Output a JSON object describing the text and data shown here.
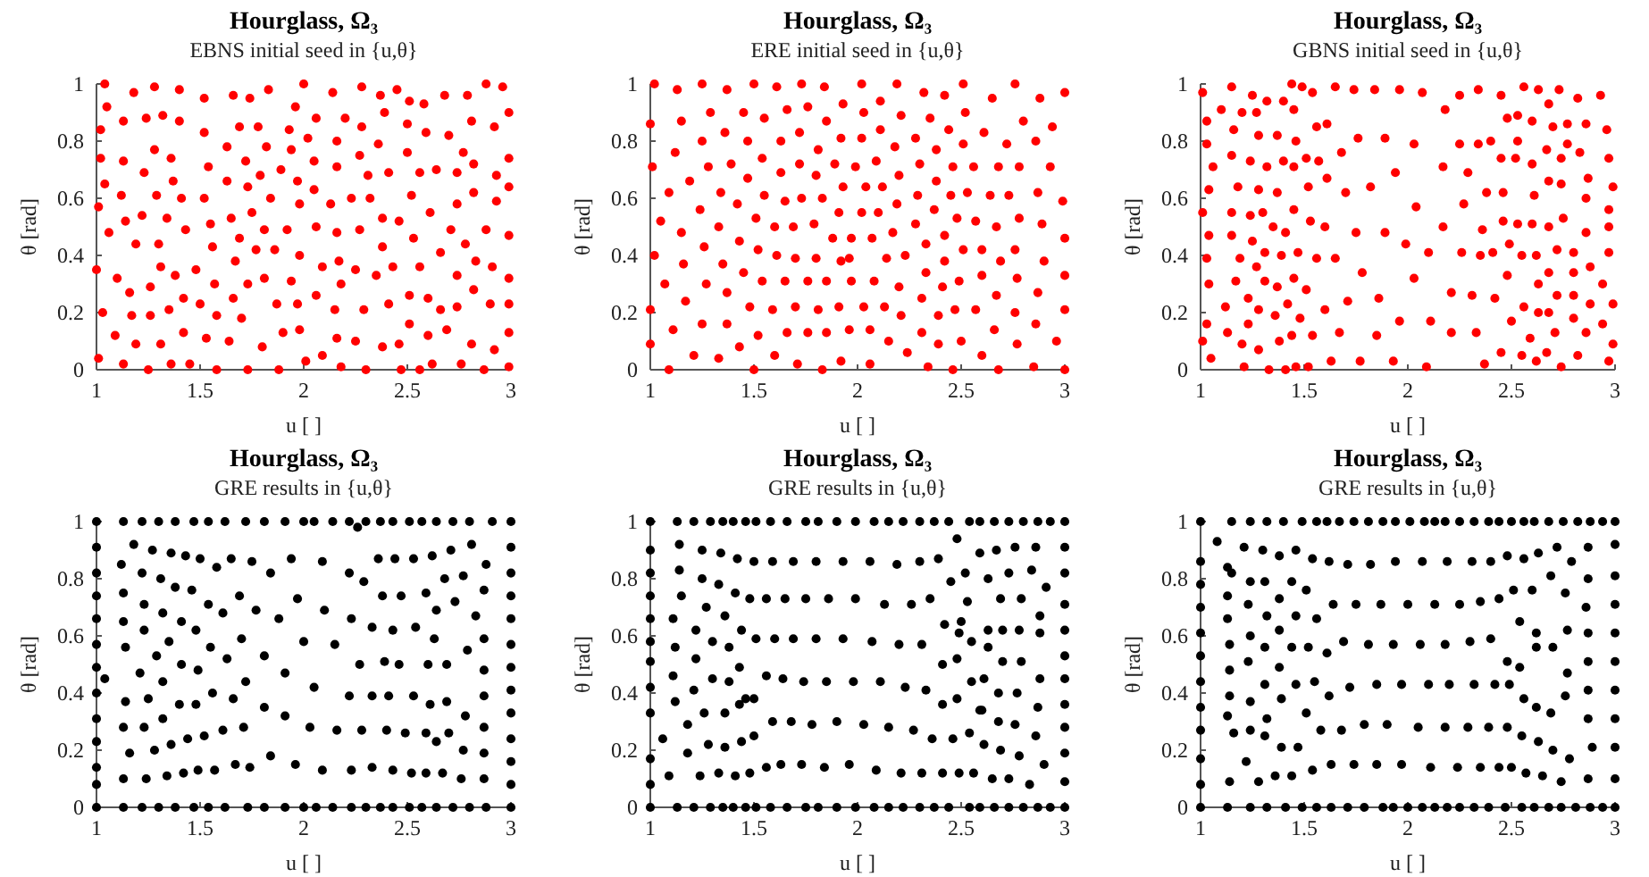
{
  "chart_data": [
    {
      "type": "scatter",
      "title": "Hourglass, Ω₃",
      "subtitle": "EBNS initial seed in {u,θ}",
      "xlabel": "u [ ]",
      "ylabel": "θ [rad]",
      "xlim": [
        1,
        3
      ],
      "ylim": [
        0,
        1
      ],
      "xticks": [
        1,
        1.5,
        2,
        2.5,
        3
      ],
      "yticks": [
        0,
        0.2,
        0.4,
        0.6,
        0.8,
        1
      ],
      "marker": "circle",
      "color": "#ff0000",
      "x": [
        1.04,
        1.05,
        1.02,
        1.02,
        1.04,
        1.01,
        1.06,
        1.0,
        1.03,
        1.01,
        1.18,
        1.13,
        1.13,
        1.12,
        1.14,
        1.1,
        1.16,
        1.17,
        1.09,
        1.13,
        1.28,
        1.24,
        1.32,
        1.28,
        1.23,
        1.22,
        1.19,
        1.3,
        1.29,
        1.34,
        1.26,
        1.26,
        1.31,
        1.19,
        1.31,
        1.25,
        1.4,
        1.4,
        1.36,
        1.37,
        1.41,
        1.43,
        1.38,
        1.35,
        1.42,
        1.42,
        1.36,
        1.45,
        1.52,
        1.52,
        1.54,
        1.52,
        1.56,
        1.55,
        1.48,
        1.5,
        1.57,
        1.53,
        1.58,
        1.58,
        1.66,
        1.63,
        1.63,
        1.65,
        1.67,
        1.66,
        1.64,
        1.69,
        1.69,
        1.7,
        1.72,
        1.73,
        1.75,
        1.74,
        1.73,
        1.73,
        1.78,
        1.79,
        1.77,
        1.81,
        1.8,
        1.81,
        1.83,
        1.82,
        1.84,
        1.86,
        1.87,
        1.88,
        1.9,
        1.89,
        1.96,
        1.93,
        1.94,
        1.92,
        1.94,
        1.98,
        1.97,
        1.98,
        1.97,
        1.98,
        2.0,
        2.02,
        2.01,
        2.05,
        2.05,
        2.06,
        2.06,
        2.06,
        2.09,
        2.09,
        2.14,
        2.13,
        2.16,
        2.16,
        2.16,
        2.17,
        2.15,
        2.16,
        2.18,
        2.18,
        2.2,
        2.23,
        2.25,
        2.25,
        2.27,
        2.27,
        2.28,
        2.28,
        2.29,
        2.31,
        2.3,
        2.32,
        2.35,
        2.37,
        2.36,
        2.38,
        2.38,
        2.38,
        2.39,
        2.41,
        2.41,
        2.43,
        2.45,
        2.46,
        2.46,
        2.47,
        2.5,
        2.5,
        2.51,
        2.51,
        2.51,
        2.52,
        2.53,
        2.56,
        2.56,
        2.56,
        2.58,
        2.59,
        2.6,
        2.6,
        2.61,
        2.62,
        2.64,
        2.66,
        2.66,
        2.68,
        2.7,
        2.69,
        2.71,
        2.74,
        2.74,
        2.74,
        2.74,
        2.76,
        2.77,
        2.78,
        2.79,
        2.81,
        2.82,
        2.82,
        2.83,
        2.82,
        2.81,
        2.88,
        2.88,
        2.87,
        2.91,
        2.92,
        2.93,
        2.93,
        2.9,
        2.92,
        2.96,
        2.99,
        2.99,
        2.99,
        2.99,
        2.99,
        2.99,
        2.99,
        2.99
      ],
      "values": [
        1.0,
        0.92,
        0.84,
        0.74,
        0.65,
        0.57,
        0.48,
        0.35,
        0.2,
        0.04,
        0.97,
        0.87,
        0.73,
        0.61,
        0.52,
        0.32,
        0.27,
        0.19,
        0.12,
        0.02,
        0.99,
        0.88,
        0.89,
        0.77,
        0.69,
        0.54,
        0.44,
        0.44,
        0.61,
        0.53,
        0.29,
        0.19,
        0.36,
        0.09,
        0.09,
        0.0,
        0.98,
        0.87,
        0.74,
        0.66,
        0.6,
        0.49,
        0.33,
        0.21,
        0.25,
        0.13,
        0.02,
        0.02,
        0.95,
        0.83,
        0.71,
        0.6,
        0.43,
        0.51,
        0.35,
        0.23,
        0.3,
        0.11,
        0.0,
        0.19,
        0.96,
        0.78,
        0.66,
        0.53,
        0.38,
        0.25,
        0.1,
        0.85,
        0.46,
        0.18,
        0.73,
        0.64,
        0.55,
        0.95,
        0.3,
        0.0,
        0.85,
        0.68,
        0.42,
        0.32,
        0.08,
        0.49,
        0.98,
        0.78,
        0.6,
        0.42,
        0.23,
        0.0,
        0.13,
        0.7,
        0.92,
        0.84,
        0.77,
        0.49,
        0.31,
        0.58,
        0.66,
        0.4,
        0.23,
        0.14,
        1.0,
        0.81,
        0.03,
        0.73,
        0.63,
        0.5,
        0.26,
        0.88,
        0.36,
        0.05,
        0.97,
        0.58,
        0.8,
        0.71,
        0.48,
        0.38,
        0.21,
        0.11,
        0.3,
        0.01,
        0.88,
        0.6,
        0.35,
        0.1,
        0.49,
        0.75,
        0.99,
        0.85,
        0.21,
        0.68,
        0.0,
        0.6,
        0.33,
        0.96,
        0.79,
        0.53,
        0.43,
        0.08,
        0.9,
        0.69,
        0.23,
        0.36,
        0.98,
        0.52,
        0.09,
        0.0,
        0.76,
        0.86,
        0.94,
        0.26,
        0.16,
        0.61,
        0.46,
        0.69,
        0.0,
        0.36,
        0.93,
        0.83,
        0.25,
        0.12,
        0.55,
        0.02,
        0.7,
        0.41,
        0.21,
        0.96,
        0.82,
        0.14,
        0.49,
        0.69,
        0.58,
        0.33,
        0.22,
        0.02,
        0.76,
        0.44,
        0.96,
        0.87,
        0.62,
        0.72,
        0.38,
        0.28,
        0.09,
        1.0,
        0.49,
        0.0,
        0.36,
        0.85,
        0.68,
        0.59,
        0.23,
        0.07,
        0.99,
        0.9,
        0.74,
        0.64,
        0.47,
        0.32,
        0.23,
        0.13,
        0.01
      ]
    },
    {
      "type": "scatter",
      "title": "Hourglass, Ω₃",
      "subtitle": "ERE initial seed in {u,θ}",
      "xlabel": "u [ ]",
      "ylabel": "θ [rad]",
      "xlim": [
        1,
        3
      ],
      "ylim": [
        0,
        1
      ],
      "xticks": [
        1,
        1.5,
        2,
        2.5,
        3
      ],
      "yticks": [
        0,
        0.2,
        0.4,
        0.6,
        0.8,
        1
      ],
      "marker": "circle",
      "color": "#ff0000",
      "x": [
        1.02,
        1.0,
        1.01,
        1.09,
        1.05,
        1.02,
        1.07,
        1.0,
        1.0,
        1.09,
        1.13,
        1.15,
        1.12,
        1.19,
        1.15,
        1.16,
        1.17,
        1.11,
        1.21,
        1.25,
        1.29,
        1.25,
        1.28,
        1.24,
        1.26,
        1.27,
        1.25,
        1.33,
        1.37,
        1.36,
        1.39,
        1.34,
        1.33,
        1.35,
        1.37,
        1.37,
        1.43,
        1.5,
        1.45,
        1.47,
        1.47,
        1.42,
        1.43,
        1.45,
        1.48,
        1.52,
        1.5,
        1.55,
        1.54,
        1.55,
        1.51,
        1.52,
        1.54,
        1.59,
        1.6,
        1.61,
        1.63,
        1.66,
        1.63,
        1.65,
        1.6,
        1.61,
        1.65,
        1.66,
        1.71,
        1.73,
        1.76,
        1.72,
        1.72,
        1.73,
        1.69,
        1.7,
        1.76,
        1.7,
        1.76,
        1.84,
        1.85,
        1.81,
        1.8,
        1.83,
        1.79,
        1.8,
        1.85,
        1.81,
        1.85,
        1.83,
        1.93,
        1.92,
        1.89,
        1.93,
        1.91,
        1.88,
        1.92,
        1.91,
        1.96,
        1.92,
        2.02,
        2.03,
        2.02,
        1.99,
        2.04,
        2.02,
        1.97,
        1.96,
        1.97,
        2.03,
        2.06,
        2.06,
        2.11,
        2.11,
        2.09,
        2.12,
        2.1,
        2.07,
        2.08,
        2.13,
        2.15,
        2.19,
        2.21,
        2.18,
        2.2,
        2.19,
        2.17,
        2.14,
        2.23,
        2.2,
        2.21,
        2.24,
        2.32,
        2.35,
        2.28,
        2.3,
        2.29,
        2.28,
        2.33,
        2.33,
        2.31,
        2.31,
        2.34,
        2.42,
        2.44,
        2.38,
        2.38,
        2.45,
        2.37,
        2.42,
        2.42,
        2.41,
        2.39,
        2.39,
        2.46,
        2.51,
        2.52,
        2.51,
        2.46,
        2.53,
        2.48,
        2.51,
        2.49,
        2.47,
        2.5,
        2.61,
        2.56,
        2.64,
        2.57,
        2.6,
        2.6,
        2.57,
        2.6,
        2.68,
        2.65,
        2.68,
        2.67,
        2.69,
        2.67,
        2.66,
        2.76,
        2.72,
        2.73,
        2.76,
        2.77,
        2.76,
        2.77,
        2.8,
        2.78,
        2.78,
        2.85,
        2.86,
        2.87,
        2.89,
        2.9,
        2.87,
        2.86,
        2.88,
        2.94,
        2.93,
        2.96,
        3.0,
        2.99,
        3.0,
        3.0,
        3.0,
        3.0
      ],
      "values": [
        1.0,
        0.86,
        0.71,
        0.62,
        0.52,
        0.4,
        0.3,
        0.21,
        0.09,
        0.0,
        0.98,
        0.87,
        0.76,
        0.66,
        0.48,
        0.37,
        0.24,
        0.14,
        0.05,
        1.0,
        0.9,
        0.8,
        0.71,
        0.56,
        0.43,
        0.3,
        0.16,
        0.04,
        0.98,
        0.83,
        0.72,
        0.62,
        0.5,
        0.37,
        0.27,
        0.16,
        0.08,
        1.0,
        0.9,
        0.8,
        0.67,
        0.58,
        0.45,
        0.34,
        0.22,
        0.12,
        0.0,
        0.88,
        0.74,
        0.61,
        0.53,
        0.42,
        0.31,
        0.21,
        0.05,
        0.99,
        0.8,
        0.91,
        0.69,
        0.59,
        0.5,
        0.4,
        0.31,
        0.13,
        0.02,
        1.0,
        0.92,
        0.83,
        0.72,
        0.6,
        0.5,
        0.39,
        0.31,
        0.22,
        0.13,
        0.99,
        0.87,
        0.77,
        0.68,
        0.6,
        0.51,
        0.39,
        0.31,
        0.21,
        0.13,
        0.0,
        0.93,
        0.81,
        0.72,
        0.64,
        0.55,
        0.46,
        0.38,
        0.22,
        0.14,
        0.03,
        1.0,
        0.9,
        0.81,
        0.71,
        0.64,
        0.55,
        0.46,
        0.39,
        0.31,
        0.22,
        0.14,
        0.02,
        0.94,
        0.84,
        0.73,
        0.64,
        0.55,
        0.46,
        0.31,
        0.22,
        0.1,
        1.0,
        0.89,
        0.78,
        0.68,
        0.58,
        0.48,
        0.39,
        0.4,
        0.29,
        0.19,
        0.06,
        0.97,
        0.88,
        0.81,
        0.72,
        0.61,
        0.51,
        0.44,
        0.34,
        0.25,
        0.13,
        0.01,
        0.96,
        0.84,
        0.77,
        0.66,
        0.61,
        0.56,
        0.47,
        0.38,
        0.29,
        0.19,
        0.09,
        0.0,
        1.0,
        0.9,
        0.79,
        0.71,
        0.62,
        0.53,
        0.42,
        0.31,
        0.21,
        0.1,
        0.83,
        0.71,
        0.61,
        0.52,
        0.42,
        0.33,
        0.21,
        0.05,
        0.0,
        0.95,
        0.71,
        0.5,
        0.38,
        0.26,
        0.14,
        1.0,
        0.79,
        0.61,
        0.42,
        0.32,
        0.2,
        0.09,
        0.87,
        0.71,
        0.53,
        0.01,
        0.8,
        0.62,
        0.51,
        0.38,
        0.27,
        0.16,
        0.95,
        0.85,
        0.71,
        0.1,
        0.97,
        0.59,
        0.46,
        0.33,
        0.21,
        0.0
      ]
    },
    {
      "type": "scatter",
      "title": "Hourglass, Ω₃",
      "subtitle": "GBNS initial seed in {u,θ}",
      "xlabel": "u [ ]",
      "ylabel": "θ [rad]",
      "xlim": [
        1,
        3
      ],
      "ylim": [
        0,
        1
      ],
      "xticks": [
        1,
        1.5,
        2,
        2.5,
        3
      ],
      "yticks": [
        0,
        0.2,
        0.4,
        0.6,
        0.8,
        1
      ],
      "marker": "circle",
      "color": "#ff0000",
      "x": [
        1.01,
        1.03,
        1.03,
        1.06,
        1.04,
        1.01,
        1.04,
        1.03,
        1.04,
        1.03,
        1.01,
        1.05,
        1.1,
        1.15,
        1.16,
        1.15,
        1.15,
        1.15,
        1.18,
        1.19,
        1.17,
        1.12,
        1.13,
        1.21,
        1.2,
        1.2,
        1.25,
        1.27,
        1.28,
        1.24,
        1.28,
        1.24,
        1.25,
        1.27,
        1.23,
        1.23,
        1.28,
        1.28,
        1.32,
        1.32,
        1.3,
        1.31,
        1.31,
        1.33,
        1.37,
        1.35,
        1.37,
        1.37,
        1.36,
        1.38,
        1.4,
        1.4,
        1.39,
        1.41,
        1.42,
        1.41,
        1.44,
        1.45,
        1.45,
        1.46,
        1.45,
        1.45,
        1.44,
        1.47,
        1.48,
        1.46,
        1.49,
        1.51,
        1.52,
        1.51,
        1.54,
        1.53,
        1.54,
        1.52,
        1.57,
        1.56,
        1.56,
        1.61,
        1.61,
        1.6,
        1.6,
        1.63,
        1.65,
        1.65,
        1.67,
        1.68,
        1.7,
        1.71,
        1.75,
        1.77,
        1.74,
        1.76,
        1.78,
        1.82,
        1.86,
        1.85,
        1.84,
        1.89,
        1.89,
        1.94,
        1.93,
        1.96,
        1.96,
        1.99,
        2.03,
        2.03,
        2.04,
        2.07,
        2.09,
        2.1,
        2.11,
        2.18,
        2.17,
        2.17,
        2.21,
        2.21,
        2.25,
        2.25,
        2.26,
        2.27,
        2.29,
        2.31,
        2.33,
        2.34,
        2.34,
        2.35,
        2.36,
        2.37,
        2.38,
        2.4,
        2.41,
        2.42,
        2.45,
        2.45,
        2.45,
        2.46,
        2.46,
        2.48,
        2.48,
        2.49,
        2.5,
        2.52,
        2.53,
        2.53,
        2.53,
        2.55,
        2.55,
        2.56,
        2.56,
        2.59,
        2.6,
        2.6,
        2.61,
        2.6,
        2.63,
        2.62,
        2.63,
        2.63,
        2.62,
        2.67,
        2.68,
        2.68,
        2.68,
        2.68,
        2.68,
        2.67,
        2.7,
        2.71,
        2.72,
        2.72,
        2.73,
        2.74,
        2.74,
        2.74,
        2.75,
        2.77,
        2.77,
        2.8,
        2.8,
        2.8,
        2.8,
        2.82,
        2.82,
        2.83,
        2.86,
        2.86,
        2.86,
        2.86,
        2.87,
        2.88,
        2.88,
        2.93,
        2.94,
        2.94,
        2.96,
        2.97,
        2.97,
        2.97,
        2.97,
        2.97,
        2.99,
        2.99,
        2.99
      ],
      "values": [
        0.97,
        0.87,
        0.79,
        0.71,
        0.63,
        0.55,
        0.47,
        0.39,
        0.3,
        0.16,
        0.1,
        0.04,
        0.91,
        0.99,
        0.84,
        0.75,
        0.55,
        0.47,
        0.64,
        0.39,
        0.31,
        0.22,
        0.13,
        0.01,
        0.09,
        0.9,
        0.96,
        0.9,
        0.82,
        0.73,
        0.63,
        0.54,
        0.45,
        0.36,
        0.25,
        0.16,
        0.21,
        0.07,
        0.94,
        0.71,
        0.55,
        0.41,
        0.31,
        0.0,
        0.82,
        0.5,
        0.62,
        0.29,
        0.19,
        0.1,
        0.94,
        0.73,
        0.4,
        0.48,
        0.23,
        0.0,
        1.0,
        0.91,
        0.71,
        0.8,
        0.56,
        0.32,
        0.12,
        0.41,
        0.18,
        0.01,
        0.99,
        0.74,
        0.64,
        0.28,
        0.97,
        0.52,
        0.12,
        0.01,
        0.73,
        0.85,
        0.39,
        0.86,
        0.67,
        0.5,
        0.21,
        0.03,
        0.99,
        0.39,
        0.13,
        0.76,
        0.62,
        0.24,
        0.48,
        0.03,
        0.98,
        0.81,
        0.34,
        0.64,
        0.25,
        0.12,
        0.98,
        0.81,
        0.48,
        0.69,
        0.03,
        0.98,
        0.17,
        0.44,
        0.32,
        0.79,
        0.57,
        0.97,
        0.01,
        0.41,
        0.17,
        0.91,
        0.71,
        0.5,
        0.27,
        0.13,
        0.96,
        0.79,
        0.41,
        0.58,
        0.69,
        0.26,
        0.13,
        0.98,
        0.79,
        0.4,
        0.49,
        0.02,
        0.62,
        0.8,
        0.41,
        0.25,
        0.96,
        0.06,
        0.74,
        0.62,
        0.52,
        0.88,
        0.33,
        0.44,
        0.17,
        0.74,
        0.89,
        0.8,
        0.51,
        0.05,
        0.4,
        0.22,
        0.99,
        0.11,
        0.87,
        0.72,
        0.61,
        0.51,
        0.98,
        0.4,
        0.3,
        0.2,
        0.03,
        0.77,
        0.93,
        0.66,
        0.5,
        0.34,
        0.2,
        0.06,
        0.85,
        0.13,
        0.26,
        0.42,
        0.98,
        0.74,
        0.65,
        0.01,
        0.53,
        0.79,
        0.86,
        0.41,
        0.34,
        0.26,
        0.18,
        0.05,
        0.95,
        0.76,
        0.86,
        0.6,
        0.48,
        0.13,
        0.67,
        0.23,
        0.36,
        0.96,
        0.3,
        0.16,
        0.84,
        0.74,
        0.56,
        0.5,
        0.41,
        0.03,
        0.64,
        0.23,
        0.09
      ]
    },
    {
      "type": "scatter",
      "title": "Hourglass, Ω₃",
      "subtitle": "GRE results in {u,θ}",
      "xlabel": "u [ ]",
      "ylabel": "θ [rad]",
      "xlim": [
        1,
        3
      ],
      "ylim": [
        0,
        1
      ],
      "xticks": [
        1,
        1.5,
        2,
        2.5,
        3
      ],
      "yticks": [
        0,
        0.2,
        0.4,
        0.6,
        0.8,
        1
      ],
      "marker": "circle",
      "color": "#000000",
      "x": [
        1.0,
        1.13,
        1.22,
        1.3,
        1.38,
        1.47,
        1.54,
        1.62,
        1.72,
        1.81,
        1.91,
        2.0,
        2.05,
        2.14,
        2.22,
        2.3,
        2.37,
        2.43,
        2.51,
        2.57,
        2.64,
        2.72,
        2.8,
        2.91,
        3.0,
        2.26,
        1.0,
        1.13,
        1.22,
        1.3,
        1.38,
        1.47,
        1.54,
        1.62,
        1.73,
        1.81,
        1.91,
        2.0,
        2.06,
        2.14,
        2.23,
        2.3,
        2.37,
        2.43,
        2.51,
        2.57,
        2.64,
        2.72,
        2.8,
        2.88,
        3.0,
        1.0,
        1.0,
        1.0,
        1.0,
        1.0,
        1.0,
        1.0,
        1.0,
        1.0,
        1.0,
        1.0,
        3.0,
        3.0,
        3.0,
        3.0,
        3.0,
        3.0,
        3.0,
        3.0,
        3.0,
        3.0,
        3.0,
        1.04,
        1.12,
        1.13,
        1.13,
        1.14,
        1.14,
        1.13,
        1.13,
        1.18,
        1.16,
        1.22,
        1.23,
        1.23,
        1.21,
        1.25,
        1.23,
        1.24,
        1.27,
        1.28,
        1.29,
        1.31,
        1.32,
        1.32,
        1.32,
        1.34,
        1.36,
        1.35,
        1.38,
        1.36,
        1.4,
        1.41,
        1.41,
        1.43,
        1.42,
        1.44,
        1.46,
        1.48,
        1.48,
        1.49,
        1.49,
        1.5,
        1.52,
        1.54,
        1.55,
        1.56,
        1.57,
        1.58,
        1.61,
        1.61,
        1.63,
        1.66,
        1.65,
        1.67,
        1.69,
        1.7,
        1.71,
        1.72,
        1.74,
        1.75,
        1.77,
        1.81,
        1.81,
        1.84,
        1.84,
        1.88,
        1.91,
        1.91,
        1.94,
        1.97,
        2.0,
        1.96,
        2.05,
        2.03,
        2.09,
        2.1,
        2.09,
        2.15,
        2.16,
        2.22,
        2.22,
        2.23,
        2.23,
        2.29,
        2.27,
        2.28,
        2.33,
        2.33,
        2.33,
        2.36,
        2.38,
        2.39,
        2.4,
        2.41,
        2.43,
        2.43,
        2.44,
        2.47,
        2.46,
        2.49,
        2.52,
        2.53,
        2.54,
        2.53,
        2.59,
        2.59,
        2.59,
        2.6,
        2.61,
        2.62,
        2.63,
        2.64,
        2.64,
        2.67,
        2.68,
        2.69,
        2.69,
        2.7,
        2.71,
        2.73,
        2.76,
        2.77,
        2.77,
        2.78,
        2.79,
        2.81,
        2.83,
        2.87,
        2.88,
        2.87,
        2.87,
        2.87,
        2.87,
        2.87,
        2.87
      ],
      "values": [
        1,
        1,
        1,
        1,
        1,
        1,
        1,
        1,
        1,
        1,
        1,
        1,
        1,
        1,
        1,
        1,
        1,
        1,
        1,
        1,
        1,
        1,
        1,
        1,
        1,
        0.98,
        0,
        0,
        0,
        0,
        0,
        0,
        0,
        0,
        0,
        0,
        0,
        0,
        0,
        0,
        0,
        0,
        0,
        0,
        0,
        0,
        0,
        0,
        0,
        0,
        0,
        0.91,
        0.82,
        0.74,
        0.66,
        0.57,
        0.49,
        0.4,
        0.31,
        0.23,
        0.14,
        0.08,
        0.91,
        0.82,
        0.74,
        0.66,
        0.57,
        0.49,
        0.41,
        0.33,
        0.24,
        0.16,
        0.08,
        0.45,
        0.85,
        0.75,
        0.65,
        0.56,
        0.37,
        0.28,
        0.1,
        0.92,
        0.19,
        0.82,
        0.71,
        0.62,
        0.47,
        0.38,
        0.28,
        0.1,
        0.9,
        0.2,
        0.53,
        0.8,
        0.68,
        0.44,
        0.31,
        0.11,
        0.89,
        0.58,
        0.77,
        0.22,
        0.36,
        0.5,
        0.65,
        0.88,
        0.12,
        0.24,
        0.76,
        0.62,
        0.36,
        0.48,
        0.13,
        0.87,
        0.25,
        0.71,
        0.56,
        0.4,
        0.13,
        0.84,
        0.68,
        0.27,
        0.52,
        0.38,
        0.87,
        0.15,
        0.74,
        0.59,
        0.28,
        0.44,
        0.14,
        0.86,
        0.69,
        0.35,
        0.53,
        0.82,
        0.18,
        0.66,
        0.47,
        0.32,
        0.87,
        0.73,
        0.58,
        0.15,
        0.42,
        0.28,
        0.86,
        0.69,
        0.13,
        0.57,
        0.27,
        0.82,
        0.39,
        0.13,
        0.66,
        0.79,
        0.5,
        0.27,
        0.63,
        0.39,
        0.14,
        0.87,
        0.74,
        0.51,
        0.27,
        0.39,
        0.62,
        0.13,
        0.87,
        0.74,
        0.5,
        0.26,
        0.12,
        0.39,
        0.63,
        0.87,
        0.75,
        0.26,
        0.12,
        0.5,
        0.36,
        0.88,
        0.59,
        0.69,
        0.23,
        0.12,
        0.8,
        0.37,
        0.5,
        0.26,
        0.9,
        0.72,
        0.1,
        0.81,
        0.2,
        0.32,
        0.55,
        0.92,
        0.67,
        0.76,
        0.85,
        0.59,
        0.48,
        0.39,
        0.28,
        0.19,
        0.1
      ]
    },
    {
      "type": "scatter",
      "title": "Hourglass, Ω₃",
      "subtitle": "GRE results in {u,θ}",
      "xlabel": "u [ ]",
      "ylabel": "θ [rad]",
      "xlim": [
        1,
        3
      ],
      "ylim": [
        0,
        1
      ],
      "xticks": [
        1,
        1.5,
        2,
        2.5,
        3
      ],
      "yticks": [
        0,
        0.2,
        0.4,
        0.6,
        0.8,
        1
      ],
      "marker": "circle",
      "color": "#000000",
      "x": [
        1.0,
        1.13,
        1.21,
        1.29,
        1.35,
        1.4,
        1.46,
        1.51,
        1.58,
        1.66,
        1.75,
        1.81,
        1.9,
        1.99,
        2.08,
        2.15,
        2.22,
        2.3,
        2.37,
        2.44,
        2.54,
        2.59,
        2.66,
        2.73,
        2.8,
        2.87,
        2.93,
        3.0,
        1.0,
        1.13,
        1.21,
        1.29,
        1.35,
        1.4,
        1.46,
        1.51,
        1.58,
        1.66,
        1.75,
        1.81,
        1.9,
        1.99,
        2.08,
        2.15,
        2.22,
        2.3,
        2.37,
        2.44,
        2.54,
        2.59,
        2.66,
        2.73,
        2.8,
        2.87,
        2.93,
        3.0,
        1.0,
        1.0,
        1.0,
        1.0,
        1.0,
        1.0,
        1.0,
        1.0,
        1.0,
        1.0,
        3.0,
        3.0,
        3.0,
        3.0,
        3.0,
        3.0,
        3.0,
        3.0,
        3.0,
        3.0,
        1.14,
        1.25,
        1.34,
        1.42,
        1.5,
        1.59,
        1.69,
        1.8,
        1.93,
        2.06,
        2.19,
        2.3,
        2.39,
        2.48,
        2.52,
        2.59,
        2.67,
        2.76,
        2.86,
        1.14,
        1.15,
        1.25,
        1.33,
        1.41,
        1.48,
        1.56,
        1.65,
        1.75,
        1.86,
        1.99,
        2.13,
        2.26,
        2.35,
        2.45,
        2.5,
        2.53,
        2.63,
        2.69,
        2.73,
        2.79,
        2.84,
        2.91,
        2.88,
        1.11,
        1.12,
        1.22,
        1.27,
        1.3,
        1.36,
        1.38,
        1.44,
        1.51,
        1.6,
        1.69,
        1.8,
        1.93,
        2.07,
        2.2,
        2.31,
        2.41,
        2.42,
        2.48,
        2.49,
        2.55,
        2.63,
        2.63,
        2.7,
        2.7,
        2.78,
        2.79,
        2.88,
        1.11,
        1.12,
        1.22,
        1.21,
        1.3,
        1.38,
        1.43,
        1.46,
        1.5,
        1.56,
        1.64,
        1.74,
        1.85,
        1.98,
        2.11,
        2.23,
        2.33,
        2.41,
        2.48,
        2.55,
        2.61,
        2.6,
        2.68,
        2.77,
        2.87,
        2.88,
        1.06,
        1.18,
        1.26,
        1.36,
        1.43,
        1.5,
        1.59,
        1.68,
        1.78,
        1.9,
        2.03,
        2.15,
        2.27,
        2.36,
        2.46,
        2.54,
        2.59,
        2.61,
        2.68,
        2.69,
        2.76,
        2.78,
        2.86,
        2.9,
        1.09,
        1.18,
        1.24,
        1.28,
        1.36,
        1.33,
        1.41,
        1.44,
        1.48,
        1.56,
        1.63,
        1.73,
        1.84,
        1.96,
        2.09,
        2.21,
        2.31,
        2.41,
        2.49,
        2.56,
        2.65,
        2.73,
        2.83
      ],
      "values": [
        1,
        1,
        1,
        1,
        1,
        1,
        1,
        1,
        1,
        1,
        1,
        1,
        1,
        1,
        1,
        1,
        1,
        1,
        1,
        1,
        1,
        1,
        1,
        1,
        1,
        1,
        1,
        1,
        0,
        0,
        0,
        0,
        0,
        0,
        0,
        0,
        0,
        0,
        0,
        0,
        0,
        0,
        0,
        0,
        0,
        0,
        0,
        0,
        0,
        0,
        0,
        0,
        0,
        0,
        0,
        0,
        0.9,
        0.82,
        0.74,
        0.66,
        0.58,
        0.51,
        0.42,
        0.33,
        0.17,
        0.08,
        0.91,
        0.82,
        0.71,
        0.62,
        0.53,
        0.45,
        0.36,
        0.28,
        0.19,
        0.09,
        0.92,
        0.9,
        0.89,
        0.87,
        0.86,
        0.86,
        0.86,
        0.86,
        0.86,
        0.86,
        0.85,
        0.86,
        0.87,
        0.94,
        0.82,
        0.89,
        0.9,
        0.91,
        0.91,
        0.83,
        0.74,
        0.8,
        0.78,
        0.75,
        0.73,
        0.73,
        0.73,
        0.73,
        0.73,
        0.73,
        0.71,
        0.71,
        0.73,
        0.79,
        0.65,
        0.72,
        0.8,
        0.73,
        0.82,
        0.73,
        0.83,
        0.77,
        0.67,
        0.66,
        0.56,
        0.62,
        0.7,
        0.58,
        0.67,
        0.56,
        0.62,
        0.59,
        0.59,
        0.59,
        0.59,
        0.59,
        0.58,
        0.57,
        0.57,
        0.5,
        0.64,
        0.52,
        0.61,
        0.58,
        0.56,
        0.62,
        0.51,
        0.62,
        0.62,
        0.51,
        0.61,
        0.46,
        0.37,
        0.52,
        0.41,
        0.45,
        0.44,
        0.49,
        0.38,
        0.38,
        0.46,
        0.45,
        0.44,
        0.44,
        0.44,
        0.44,
        0.42,
        0.41,
        0.36,
        0.38,
        0.44,
        0.45,
        0.34,
        0.4,
        0.4,
        0.35,
        0.45,
        0.24,
        0.29,
        0.33,
        0.33,
        0.36,
        0.25,
        0.3,
        0.3,
        0.29,
        0.3,
        0.29,
        0.28,
        0.27,
        0.24,
        0.24,
        0.26,
        0.34,
        0.22,
        0.3,
        0.2,
        0.29,
        0.18,
        0.25,
        0.15,
        0.11,
        0.19,
        0.11,
        0.22,
        0.21,
        0.12,
        0.11,
        0.23,
        0.12,
        0.14,
        0.15,
        0.15,
        0.14,
        0.15,
        0.13,
        0.12,
        0.12,
        0.12,
        0.12,
        0.12,
        0.1,
        0.1,
        0.08
      ]
    },
    {
      "type": "scatter",
      "title": "Hourglass, Ω₃",
      "subtitle": "GRE results in {u,θ}",
      "xlabel": "u [ ]",
      "ylabel": "θ [rad]",
      "xlim": [
        1,
        3
      ],
      "ylim": [
        0,
        1
      ],
      "xticks": [
        1,
        1.5,
        2,
        2.5,
        3
      ],
      "yticks": [
        0,
        0.2,
        0.4,
        0.6,
        0.8,
        1
      ],
      "marker": "circle",
      "color": "#000000",
      "x": [
        1.0,
        1.15,
        1.24,
        1.32,
        1.4,
        1.49,
        1.56,
        1.61,
        1.67,
        1.74,
        1.81,
        1.88,
        1.94,
        2.01,
        2.08,
        2.13,
        2.18,
        2.25,
        2.32,
        2.39,
        2.44,
        2.5,
        2.56,
        2.61,
        2.68,
        2.75,
        2.82,
        2.88,
        2.94,
        3.0,
        1.0,
        1.13,
        1.24,
        1.32,
        1.41,
        1.49,
        1.56,
        1.63,
        1.71,
        1.79,
        1.88,
        1.93,
        2.0,
        2.07,
        2.13,
        2.19,
        2.25,
        2.32,
        2.39,
        2.47,
        2.55,
        2.61,
        2.68,
        2.74,
        2.81,
        2.88,
        2.94,
        3.0,
        1.0,
        1.0,
        1.0,
        1.0,
        1.0,
        1.0,
        1.0,
        1.0,
        1.0,
        1.0,
        3.0,
        3.0,
        3.0,
        3.0,
        3.0,
        3.0,
        3.0,
        3.0,
        3.0,
        1.08,
        1.13,
        1.21,
        1.3,
        1.38,
        1.46,
        1.54,
        1.62,
        1.71,
        1.82,
        1.94,
        2.07,
        2.19,
        2.31,
        2.4,
        2.48,
        2.56,
        2.63,
        2.72,
        2.79,
        2.87,
        1.13,
        1.15,
        1.24,
        1.23,
        1.31,
        1.32,
        1.38,
        1.44,
        1.51,
        1.46,
        1.56,
        1.64,
        1.75,
        1.87,
        2.0,
        2.13,
        2.25,
        2.35,
        2.44,
        2.51,
        2.6,
        2.69,
        2.54,
        2.62,
        2.76,
        2.87,
        2.86,
        1.13,
        1.14,
        1.24,
        1.23,
        1.31,
        1.38,
        1.44,
        1.52,
        1.61,
        1.69,
        1.81,
        1.93,
        2.06,
        2.18,
        2.3,
        2.4,
        2.48,
        2.54,
        2.62,
        2.7,
        2.77,
        2.77,
        2.87,
        2.87,
        1.14,
        1.14,
        1.24,
        1.31,
        1.32,
        1.38,
        1.39,
        1.46,
        1.51,
        1.55,
        1.62,
        1.72,
        1.85,
        1.97,
        2.1,
        2.2,
        2.32,
        2.42,
        2.49,
        2.56,
        2.62,
        2.69,
        2.76,
        2.87,
        1.13,
        1.16,
        1.24,
        1.31,
        1.39,
        1.47,
        1.58,
        1.68,
        1.79,
        1.9,
        2.05,
        2.18,
        2.29,
        2.39,
        2.48,
        2.55,
        2.63,
        2.7,
        2.78,
        2.89,
        2.87,
        1.14,
        1.22,
        1.28,
        1.36,
        1.44,
        1.54,
        1.63,
        1.74,
        1.85,
        1.97,
        2.11,
        2.24,
        2.35,
        2.44,
        2.5,
        2.57,
        2.65,
        2.74,
        2.87
      ],
      "values": [
        1,
        1,
        1,
        1,
        1,
        1,
        1,
        1,
        1,
        1,
        1,
        1,
        1,
        1,
        1,
        1,
        1,
        1,
        1,
        1,
        1,
        1,
        1,
        1,
        1,
        1,
        1,
        1,
        1,
        1,
        0,
        0,
        0,
        0,
        0,
        0,
        0,
        0,
        0,
        0,
        0,
        0,
        0,
        0,
        0,
        0,
        0,
        0,
        0,
        0,
        0,
        0,
        0,
        0,
        0,
        0,
        0,
        0,
        0.86,
        0.78,
        0.7,
        0.61,
        0.53,
        0.44,
        0.35,
        0.27,
        0.17,
        0.08,
        0.92,
        0.81,
        0.71,
        0.61,
        0.51,
        0.41,
        0.31,
        0.21,
        0.1,
        0.93,
        0.84,
        0.91,
        0.9,
        0.88,
        0.9,
        0.87,
        0.86,
        0.85,
        0.85,
        0.86,
        0.86,
        0.86,
        0.86,
        0.86,
        0.88,
        0.87,
        0.89,
        0.91,
        0.86,
        0.91,
        0.74,
        0.82,
        0.79,
        0.71,
        0.79,
        0.67,
        0.73,
        0.79,
        0.76,
        0.67,
        0.66,
        0.71,
        0.71,
        0.71,
        0.71,
        0.71,
        0.71,
        0.72,
        0.73,
        0.76,
        0.76,
        0.81,
        0.65,
        0.61,
        0.75,
        0.8,
        0.7,
        0.66,
        0.57,
        0.6,
        0.51,
        0.56,
        0.62,
        0.56,
        0.56,
        0.54,
        0.58,
        0.57,
        0.57,
        0.57,
        0.57,
        0.58,
        0.59,
        0.51,
        0.49,
        0.56,
        0.56,
        0.62,
        0.47,
        0.61,
        0.51,
        0.48,
        0.39,
        0.37,
        0.43,
        0.31,
        0.49,
        0.38,
        0.43,
        0.33,
        0.44,
        0.39,
        0.42,
        0.43,
        0.43,
        0.43,
        0.43,
        0.43,
        0.43,
        0.43,
        0.38,
        0.35,
        0.33,
        0.39,
        0.41,
        0.32,
        0.26,
        0.27,
        0.25,
        0.21,
        0.21,
        0.27,
        0.27,
        0.29,
        0.29,
        0.28,
        0.28,
        0.28,
        0.28,
        0.28,
        0.25,
        0.23,
        0.2,
        0.17,
        0.21,
        0.31,
        0.09,
        0.16,
        0.09,
        0.11,
        0.11,
        0.13,
        0.15,
        0.15,
        0.15,
        0.15,
        0.14,
        0.14,
        0.14,
        0.14,
        0.14,
        0.12,
        0.11,
        0.09,
        0.1
      ]
    }
  ]
}
